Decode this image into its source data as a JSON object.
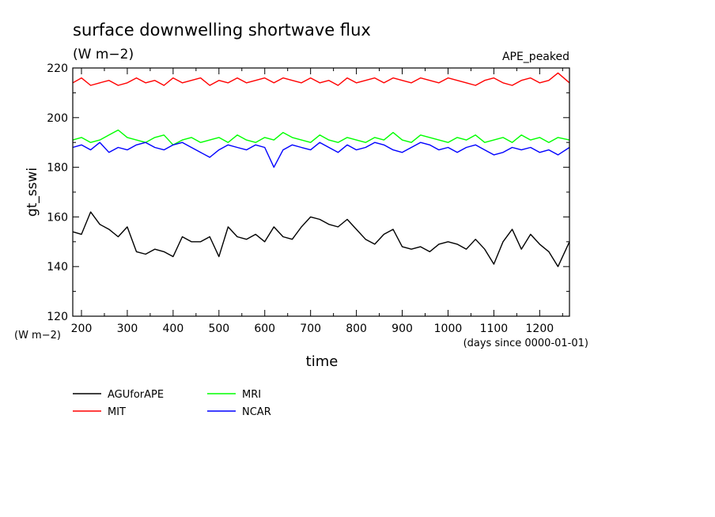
{
  "chart_data": {
    "type": "line",
    "title": "surface downwelling shortwave flux",
    "subtitle": "(W m−2)",
    "experiment": "APE_peaked",
    "xlabel": "time",
    "xunit": "(days since 0000-01-01)",
    "ylabel": "gt_sswi",
    "yunit": "(W m−2)",
    "xlim": [
      181,
      1265
    ],
    "ylim": [
      120,
      220
    ],
    "xticks": [
      200,
      300,
      400,
      500,
      600,
      700,
      800,
      900,
      1000,
      1100,
      1200
    ],
    "yticks": [
      120,
      140,
      160,
      180,
      200,
      220
    ],
    "legend_position": "bottom-left",
    "series": [
      {
        "name": "AGUforAPE",
        "color": "#000000",
        "x": [
          181,
          200,
          220,
          240,
          260,
          280,
          300,
          320,
          340,
          360,
          380,
          400,
          420,
          440,
          460,
          480,
          500,
          520,
          540,
          560,
          580,
          600,
          620,
          640,
          660,
          680,
          700,
          720,
          740,
          760,
          780,
          800,
          820,
          840,
          860,
          880,
          900,
          920,
          940,
          960,
          980,
          1000,
          1020,
          1040,
          1060,
          1080,
          1100,
          1120,
          1140,
          1160,
          1180,
          1200,
          1220,
          1240,
          1265
        ],
        "y": [
          154,
          153,
          162,
          157,
          155,
          152,
          156,
          146,
          145,
          147,
          146,
          144,
          152,
          150,
          150,
          152,
          144,
          156,
          152,
          151,
          153,
          150,
          156,
          152,
          151,
          156,
          160,
          159,
          157,
          156,
          159,
          155,
          151,
          149,
          153,
          155,
          148,
          147,
          148,
          146,
          149,
          150,
          149,
          147,
          151,
          147,
          141,
          150,
          155,
          147,
          153,
          149,
          146,
          140,
          150
        ]
      },
      {
        "name": "MIT",
        "color": "#ff0000",
        "x": [
          181,
          200,
          220,
          240,
          260,
          280,
          300,
          320,
          340,
          360,
          380,
          400,
          420,
          440,
          460,
          480,
          500,
          520,
          540,
          560,
          580,
          600,
          620,
          640,
          660,
          680,
          700,
          720,
          740,
          760,
          780,
          800,
          820,
          840,
          860,
          880,
          900,
          920,
          940,
          960,
          980,
          1000,
          1020,
          1040,
          1060,
          1080,
          1100,
          1120,
          1140,
          1160,
          1180,
          1200,
          1220,
          1240,
          1265
        ],
        "y": [
          214,
          216,
          213,
          214,
          215,
          213,
          214,
          216,
          214,
          215,
          213,
          216,
          214,
          215,
          216,
          213,
          215,
          214,
          216,
          214,
          215,
          216,
          214,
          216,
          215,
          214,
          216,
          214,
          215,
          213,
          216,
          214,
          215,
          216,
          214,
          216,
          215,
          214,
          216,
          215,
          214,
          216,
          215,
          214,
          213,
          215,
          216,
          214,
          213,
          215,
          216,
          214,
          215,
          218,
          214
        ]
      },
      {
        "name": "MRI",
        "color": "#00ff00",
        "x": [
          181,
          200,
          220,
          240,
          260,
          280,
          300,
          320,
          340,
          360,
          380,
          400,
          420,
          440,
          460,
          480,
          500,
          520,
          540,
          560,
          580,
          600,
          620,
          640,
          660,
          680,
          700,
          720,
          740,
          760,
          780,
          800,
          820,
          840,
          860,
          880,
          900,
          920,
          940,
          960,
          980,
          1000,
          1020,
          1040,
          1060,
          1080,
          1100,
          1120,
          1140,
          1160,
          1180,
          1200,
          1220,
          1240,
          1265
        ],
        "y": [
          191,
          192,
          190,
          191,
          193,
          195,
          192,
          191,
          190,
          192,
          193,
          189,
          191,
          192,
          190,
          191,
          192,
          190,
          193,
          191,
          190,
          192,
          191,
          194,
          192,
          191,
          190,
          193,
          191,
          190,
          192,
          191,
          190,
          192,
          191,
          194,
          191,
          190,
          193,
          192,
          191,
          190,
          192,
          191,
          193,
          190,
          191,
          192,
          190,
          193,
          191,
          192,
          190,
          192,
          191
        ]
      },
      {
        "name": "NCAR",
        "color": "#0000ff",
        "x": [
          181,
          200,
          220,
          240,
          260,
          280,
          300,
          320,
          340,
          360,
          380,
          400,
          420,
          440,
          460,
          480,
          500,
          520,
          540,
          560,
          580,
          600,
          620,
          640,
          660,
          680,
          700,
          720,
          740,
          760,
          780,
          800,
          820,
          840,
          860,
          880,
          900,
          920,
          940,
          960,
          980,
          1000,
          1020,
          1040,
          1060,
          1080,
          1100,
          1120,
          1140,
          1160,
          1180,
          1200,
          1220,
          1240,
          1265
        ],
        "y": [
          188,
          189,
          187,
          190,
          186,
          188,
          187,
          189,
          190,
          188,
          187,
          189,
          190,
          188,
          186,
          184,
          187,
          189,
          188,
          187,
          189,
          188,
          180,
          187,
          189,
          188,
          187,
          190,
          188,
          186,
          189,
          187,
          188,
          190,
          189,
          187,
          186,
          188,
          190,
          189,
          187,
          188,
          186,
          188,
          189,
          187,
          185,
          186,
          188,
          187,
          188,
          186,
          187,
          185,
          188
        ]
      }
    ]
  }
}
